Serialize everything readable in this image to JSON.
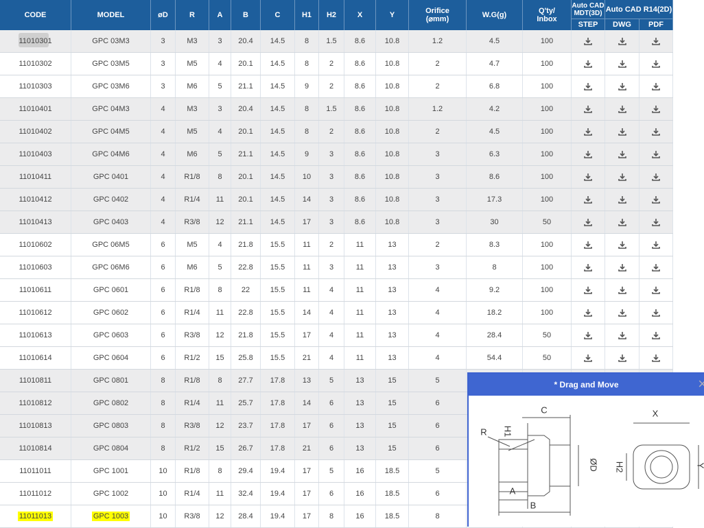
{
  "table": {
    "columns": [
      "CODE",
      "MODEL",
      "øD",
      "R",
      "A",
      "B",
      "C",
      "H1",
      "H2",
      "X",
      "Y",
      [
        "Orifice",
        "(⌀mm)"
      ],
      "W.G(g)",
      [
        "Q'ty/",
        "Inbox"
      ]
    ],
    "group_headers": [
      [
        "Auto CAD",
        "MDT(3D)"
      ],
      [
        "Auto CAD R14(2D)"
      ]
    ],
    "sub_headers": [
      "STEP",
      "DWG",
      "PDF"
    ],
    "rows": [
      [
        "11010301",
        "GPC 03M3",
        "3",
        "M3",
        "3",
        "20.4",
        "14.5",
        "8",
        "1.5",
        "8.6",
        "10.8",
        "1.2",
        "4.5",
        "100"
      ],
      [
        "11010302",
        "GPC 03M5",
        "3",
        "M5",
        "4",
        "20.1",
        "14.5",
        "8",
        "2",
        "8.6",
        "10.8",
        "2",
        "4.7",
        "100"
      ],
      [
        "11010303",
        "GPC 03M6",
        "3",
        "M6",
        "5",
        "21.1",
        "14.5",
        "9",
        "2",
        "8.6",
        "10.8",
        "2",
        "6.8",
        "100"
      ],
      [
        "11010401",
        "GPC 04M3",
        "4",
        "M3",
        "3",
        "20.4",
        "14.5",
        "8",
        "1.5",
        "8.6",
        "10.8",
        "1.2",
        "4.2",
        "100"
      ],
      [
        "11010402",
        "GPC 04M5",
        "4",
        "M5",
        "4",
        "20.1",
        "14.5",
        "8",
        "2",
        "8.6",
        "10.8",
        "2",
        "4.5",
        "100"
      ],
      [
        "11010403",
        "GPC 04M6",
        "4",
        "M6",
        "5",
        "21.1",
        "14.5",
        "9",
        "3",
        "8.6",
        "10.8",
        "3",
        "6.3",
        "100"
      ],
      [
        "11010411",
        "GPC 0401",
        "4",
        "R1/8",
        "8",
        "20.1",
        "14.5",
        "10",
        "3",
        "8.6",
        "10.8",
        "3",
        "8.6",
        "100"
      ],
      [
        "11010412",
        "GPC 0402",
        "4",
        "R1/4",
        "11",
        "20.1",
        "14.5",
        "14",
        "3",
        "8.6",
        "10.8",
        "3",
        "17.3",
        "100"
      ],
      [
        "11010413",
        "GPC 0403",
        "4",
        "R3/8",
        "12",
        "21.1",
        "14.5",
        "17",
        "3",
        "8.6",
        "10.8",
        "3",
        "30",
        "50"
      ],
      [
        "11010602",
        "GPC 06M5",
        "6",
        "M5",
        "4",
        "21.8",
        "15.5",
        "11",
        "2",
        "11",
        "13",
        "2",
        "8.3",
        "100"
      ],
      [
        "11010603",
        "GPC 06M6",
        "6",
        "M6",
        "5",
        "22.8",
        "15.5",
        "11",
        "3",
        "11",
        "13",
        "3",
        "8",
        "100"
      ],
      [
        "11010611",
        "GPC 0601",
        "6",
        "R1/8",
        "8",
        "22",
        "15.5",
        "11",
        "4",
        "11",
        "13",
        "4",
        "9.2",
        "100"
      ],
      [
        "11010612",
        "GPC 0602",
        "6",
        "R1/4",
        "11",
        "22.8",
        "15.5",
        "14",
        "4",
        "11",
        "13",
        "4",
        "18.2",
        "100"
      ],
      [
        "11010613",
        "GPC 0603",
        "6",
        "R3/8",
        "12",
        "21.8",
        "15.5",
        "17",
        "4",
        "11",
        "13",
        "4",
        "28.4",
        "50"
      ],
      [
        "11010614",
        "GPC 0604",
        "6",
        "R1/2",
        "15",
        "25.8",
        "15.5",
        "21",
        "4",
        "11",
        "13",
        "4",
        "54.4",
        "50"
      ],
      [
        "11010811",
        "GPC 0801",
        "8",
        "R1/8",
        "8",
        "27.7",
        "17.8",
        "13",
        "5",
        "13",
        "15",
        "5"
      ],
      [
        "11010812",
        "GPC 0802",
        "8",
        "R1/4",
        "11",
        "25.7",
        "17.8",
        "14",
        "6",
        "13",
        "15",
        "6"
      ],
      [
        "11010813",
        "GPC 0803",
        "8",
        "R3/8",
        "12",
        "23.7",
        "17.8",
        "17",
        "6",
        "13",
        "15",
        "6"
      ],
      [
        "11010814",
        "GPC 0804",
        "8",
        "R1/2",
        "15",
        "26.7",
        "17.8",
        "21",
        "6",
        "13",
        "15",
        "6"
      ],
      [
        "11011011",
        "GPC 1001",
        "10",
        "R1/8",
        "8",
        "29.4",
        "19.4",
        "17",
        "5",
        "16",
        "18.5",
        "5"
      ],
      [
        "11011012",
        "GPC 1002",
        "10",
        "R1/4",
        "11",
        "32.4",
        "19.4",
        "17",
        "6",
        "16",
        "18.5",
        "6"
      ],
      [
        "11011013",
        "GPC 1003",
        "10",
        "R3/8",
        "12",
        "28.4",
        "19.4",
        "17",
        "8",
        "16",
        "18.5",
        "8"
      ]
    ]
  },
  "popup": {
    "title": "* Drag and Move",
    "close": "×",
    "labels": {
      "r": "R",
      "h1": "H1",
      "c": "C",
      "d": "ØD",
      "a": "A",
      "b": "B",
      "x": "X",
      "h2": "H2",
      "y": "Y"
    }
  }
}
